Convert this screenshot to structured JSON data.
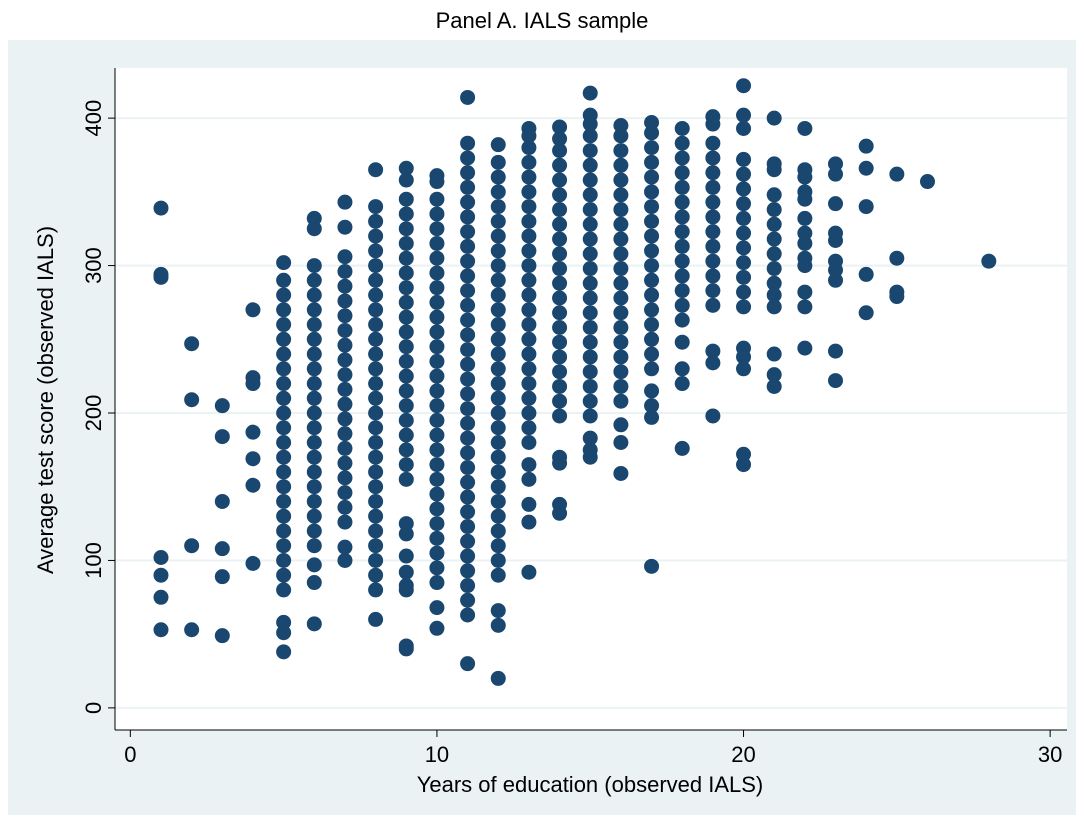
{
  "chart_data": {
    "type": "scatter",
    "title": "Panel A. IALS sample",
    "x_label": "Years of education (observed IALS)",
    "y_label": "Average test score (observed IALS)",
    "color": "#1a476f",
    "xlim": [
      -0.5,
      30.55
    ],
    "ylim": [
      -15,
      434
    ],
    "xticks": [
      0,
      10,
      20,
      30
    ],
    "yticks": [
      0,
      100,
      200,
      300,
      400
    ],
    "grid": true,
    "x": [
      1,
      1,
      1,
      1,
      1,
      1,
      1,
      2,
      2,
      2,
      2,
      3,
      3,
      3,
      3,
      3,
      3,
      4,
      4,
      4,
      4,
      4,
      4,
      4,
      5,
      5,
      5,
      5,
      5,
      5,
      5,
      5,
      5,
      5,
      5,
      5,
      5,
      5,
      5,
      5,
      5,
      5,
      5,
      5,
      5,
      5,
      5,
      5,
      5,
      5,
      6,
      6,
      6,
      6,
      6,
      6,
      6,
      6,
      6,
      6,
      6,
      6,
      6,
      6,
      6,
      6,
      6,
      6,
      6,
      6,
      6,
      6,
      6,
      6,
      6,
      7,
      7,
      7,
      7,
      7,
      7,
      7,
      7,
      7,
      7,
      7,
      7,
      7,
      7,
      7,
      7,
      7,
      7,
      7,
      7,
      7,
      7,
      7,
      8,
      8,
      8,
      8,
      8,
      8,
      8,
      8,
      8,
      8,
      8,
      8,
      8,
      8,
      8,
      8,
      8,
      8,
      8,
      8,
      8,
      8,
      8,
      8,
      8,
      8,
      8,
      8,
      8,
      9,
      9,
      9,
      9,
      9,
      9,
      9,
      9,
      9,
      9,
      9,
      9,
      9,
      9,
      9,
      9,
      9,
      9,
      9,
      9,
      9,
      9,
      9,
      9,
      9,
      9,
      9,
      9,
      9,
      9,
      10,
      10,
      10,
      10,
      10,
      10,
      10,
      10,
      10,
      10,
      10,
      10,
      10,
      10,
      10,
      10,
      10,
      10,
      10,
      10,
      10,
      10,
      10,
      10,
      10,
      10,
      10,
      10,
      10,
      10,
      10,
      11,
      11,
      11,
      11,
      11,
      11,
      11,
      11,
      11,
      11,
      11,
      11,
      11,
      11,
      11,
      11,
      11,
      11,
      11,
      11,
      11,
      11,
      11,
      11,
      11,
      11,
      11,
      11,
      11,
      11,
      11,
      11,
      11,
      11,
      11,
      12,
      12,
      12,
      12,
      12,
      12,
      12,
      12,
      12,
      12,
      12,
      12,
      12,
      12,
      12,
      12,
      12,
      12,
      12,
      12,
      12,
      12,
      12,
      12,
      12,
      12,
      12,
      12,
      12,
      12,
      12,
      12,
      12,
      13,
      13,
      13,
      13,
      13,
      13,
      13,
      13,
      13,
      13,
      13,
      13,
      13,
      13,
      13,
      13,
      13,
      13,
      13,
      13,
      13,
      13,
      13,
      13,
      13,
      13,
      13,
      13,
      14,
      14,
      14,
      14,
      14,
      14,
      14,
      14,
      14,
      14,
      14,
      14,
      14,
      14,
      14,
      14,
      14,
      14,
      14,
      14,
      14,
      14,
      14,
      14,
      14,
      15,
      15,
      15,
      15,
      15,
      15,
      15,
      15,
      15,
      15,
      15,
      15,
      15,
      15,
      15,
      15,
      15,
      15,
      15,
      15,
      15,
      15,
      15,
      15,
      15,
      15,
      16,
      16,
      16,
      16,
      16,
      16,
      16,
      16,
      16,
      16,
      16,
      16,
      16,
      16,
      16,
      16,
      16,
      16,
      16,
      16,
      16,
      16,
      16,
      17,
      17,
      17,
      17,
      17,
      17,
      17,
      17,
      17,
      17,
      17,
      17,
      17,
      17,
      17,
      17,
      17,
      17,
      17,
      17,
      17,
      17,
      18,
      18,
      18,
      18,
      18,
      18,
      18,
      18,
      18,
      18,
      18,
      18,
      18,
      18,
      18,
      18,
      18,
      18,
      19,
      19,
      19,
      19,
      19,
      19,
      19,
      19,
      19,
      19,
      19,
      19,
      19,
      19,
      19,
      19,
      19,
      20,
      20,
      20,
      20,
      20,
      20,
      20,
      20,
      20,
      20,
      20,
      20,
      20,
      20,
      20,
      20,
      20,
      20,
      20,
      21,
      21,
      21,
      21,
      21,
      21,
      21,
      21,
      21,
      21,
      21,
      21,
      21,
      21,
      21,
      22,
      22,
      22,
      22,
      22,
      22,
      22,
      22,
      22,
      22,
      22,
      22,
      22,
      23,
      23,
      23,
      23,
      23,
      23,
      23,
      23,
      23,
      23,
      24,
      24,
      24,
      24,
      24,
      25,
      25,
      25,
      25,
      26,
      28
    ],
    "values": [
      339,
      294,
      292,
      102,
      90,
      75,
      53,
      247,
      209,
      110,
      53,
      205,
      184,
      140,
      108,
      89,
      49,
      270,
      224,
      220,
      187,
      169,
      151,
      98,
      302,
      290,
      280,
      270,
      260,
      250,
      240,
      230,
      220,
      210,
      200,
      190,
      180,
      170,
      160,
      150,
      140,
      130,
      120,
      110,
      100,
      90,
      80,
      58,
      51,
      38,
      332,
      325,
      300,
      290,
      280,
      270,
      260,
      250,
      240,
      230,
      220,
      210,
      200,
      190,
      180,
      170,
      160,
      150,
      140,
      130,
      120,
      110,
      97,
      85,
      57,
      343,
      326,
      306,
      296,
      286,
      276,
      266,
      256,
      246,
      236,
      226,
      216,
      206,
      196,
      186,
      176,
      166,
      156,
      146,
      136,
      126,
      109,
      100,
      365,
      340,
      330,
      320,
      310,
      300,
      290,
      280,
      270,
      260,
      250,
      240,
      230,
      220,
      210,
      200,
      190,
      180,
      170,
      160,
      150,
      140,
      130,
      120,
      110,
      100,
      90,
      80,
      60,
      366,
      358,
      345,
      335,
      325,
      315,
      305,
      295,
      285,
      275,
      265,
      255,
      245,
      235,
      225,
      215,
      205,
      195,
      185,
      175,
      165,
      155,
      125,
      118,
      103,
      92,
      83,
      80,
      42,
      40,
      361,
      357,
      345,
      335,
      325,
      315,
      305,
      295,
      285,
      275,
      265,
      255,
      245,
      235,
      225,
      215,
      205,
      195,
      185,
      175,
      165,
      155,
      145,
      135,
      125,
      115,
      105,
      95,
      85,
      68,
      54,
      414,
      383,
      373,
      363,
      353,
      343,
      333,
      323,
      313,
      303,
      293,
      283,
      273,
      263,
      253,
      243,
      233,
      223,
      213,
      203,
      193,
      183,
      173,
      163,
      153,
      143,
      133,
      123,
      113,
      103,
      93,
      83,
      73,
      63,
      30,
      382,
      370,
      360,
      350,
      340,
      330,
      320,
      310,
      300,
      290,
      280,
      270,
      260,
      250,
      240,
      230,
      220,
      210,
      200,
      190,
      180,
      170,
      160,
      150,
      140,
      130,
      120,
      110,
      100,
      90,
      66,
      56,
      20,
      393,
      388,
      380,
      370,
      360,
      350,
      340,
      330,
      320,
      310,
      300,
      290,
      280,
      270,
      260,
      250,
      240,
      230,
      220,
      210,
      200,
      190,
      180,
      165,
      155,
      138,
      126,
      92,
      394,
      386,
      378,
      368,
      358,
      348,
      338,
      328,
      318,
      308,
      298,
      288,
      278,
      268,
      258,
      248,
      238,
      228,
      218,
      208,
      198,
      170,
      166,
      138,
      132,
      417,
      402,
      396,
      388,
      378,
      368,
      358,
      348,
      338,
      328,
      318,
      308,
      298,
      288,
      278,
      268,
      258,
      248,
      238,
      228,
      218,
      208,
      198,
      183,
      175,
      170,
      395,
      388,
      378,
      368,
      358,
      348,
      338,
      328,
      318,
      308,
      298,
      288,
      278,
      268,
      258,
      248,
      238,
      228,
      218,
      208,
      192,
      180,
      159,
      397,
      390,
      380,
      370,
      360,
      350,
      340,
      330,
      320,
      310,
      300,
      290,
      280,
      270,
      260,
      250,
      240,
      230,
      215,
      205,
      197,
      96,
      393,
      383,
      373,
      363,
      353,
      343,
      333,
      323,
      313,
      303,
      293,
      283,
      273,
      263,
      248,
      230,
      220,
      176,
      401,
      396,
      383,
      373,
      363,
      353,
      343,
      333,
      323,
      313,
      303,
      293,
      283,
      273,
      242,
      234,
      198,
      422,
      402,
      393,
      372,
      362,
      352,
      342,
      332,
      322,
      312,
      302,
      292,
      282,
      272,
      244,
      238,
      230,
      172,
      165,
      400,
      369,
      365,
      348,
      338,
      328,
      318,
      308,
      298,
      288,
      280,
      272,
      240,
      226,
      218,
      393,
      365,
      360,
      350,
      345,
      332,
      322,
      315,
      305,
      300,
      282,
      272,
      244,
      369,
      362,
      342,
      322,
      317,
      303,
      297,
      290,
      242,
      222,
      381,
      366,
      340,
      294,
      268,
      362,
      305,
      282,
      279,
      357,
      303
    ]
  }
}
